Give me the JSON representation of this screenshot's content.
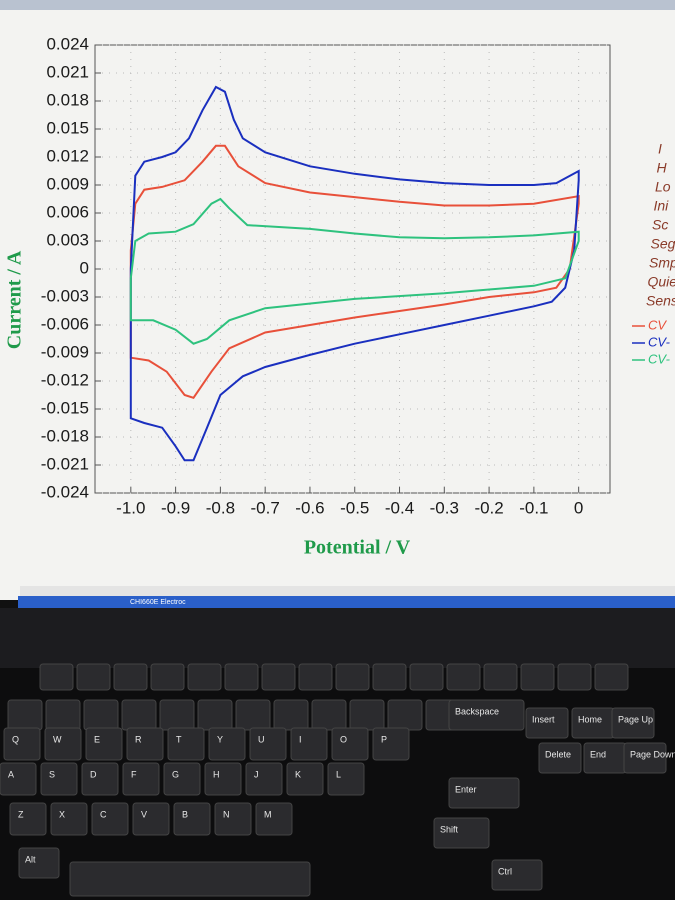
{
  "chart_data": {
    "type": "line",
    "xlabel": "Potential / V",
    "ylabel": "Current / A",
    "xlim": [
      -1.08,
      0.07
    ],
    "ylim": [
      -0.024,
      0.024
    ],
    "xticks": [
      {
        "value": -1,
        "label": "-1.0"
      },
      -0.9,
      -0.8,
      -0.7,
      -0.6,
      -0.5,
      -0.4,
      -0.3,
      -0.2,
      -0.1,
      0
    ],
    "yticks": [
      0.024,
      0.021,
      0.018,
      0.015,
      0.012,
      0.009,
      0.006,
      0.003,
      0,
      -0.003,
      -0.006,
      -0.009,
      -0.012,
      -0.015,
      -0.018,
      -0.021,
      -0.024
    ],
    "grid": true,
    "series": [
      {
        "name": "CV",
        "color": "#e8503a",
        "x": [
          -1.0,
          -0.99,
          -0.97,
          -0.93,
          -0.88,
          -0.84,
          -0.81,
          -0.79,
          -0.76,
          -0.7,
          -0.6,
          -0.5,
          -0.4,
          -0.3,
          -0.2,
          -0.1,
          0,
          0,
          -0.02,
          -0.05,
          -0.1,
          -0.2,
          -0.3,
          -0.4,
          -0.5,
          -0.6,
          -0.7,
          -0.78,
          -0.82,
          -0.86,
          -0.88,
          -0.92,
          -0.96,
          -1.0,
          -1.0
        ],
        "values": [
          0.002,
          0.007,
          0.0085,
          0.0088,
          0.0095,
          0.0115,
          0.0132,
          0.0132,
          0.011,
          0.0092,
          0.0082,
          0.0077,
          0.0072,
          0.0068,
          0.0068,
          0.007,
          0.0078,
          0.007,
          0.0,
          -0.002,
          -0.0025,
          -0.003,
          -0.0038,
          -0.0045,
          -0.0052,
          -0.006,
          -0.0068,
          -0.0085,
          -0.011,
          -0.0138,
          -0.0135,
          -0.011,
          -0.0098,
          -0.0095,
          0.002
        ]
      },
      {
        "name": "CV-",
        "color": "#1a2fbf",
        "x": [
          -1.0,
          -0.99,
          -0.97,
          -0.93,
          -0.9,
          -0.87,
          -0.84,
          -0.81,
          -0.79,
          -0.77,
          -0.75,
          -0.7,
          -0.6,
          -0.5,
          -0.4,
          -0.3,
          -0.2,
          -0.1,
          -0.05,
          0,
          0,
          -0.01,
          -0.03,
          -0.06,
          -0.1,
          -0.2,
          -0.3,
          -0.4,
          -0.5,
          -0.6,
          -0.7,
          -0.75,
          -0.8,
          -0.83,
          -0.86,
          -0.88,
          -0.9,
          -0.93,
          -0.97,
          -1.0,
          -1.0
        ],
        "values": [
          0.0,
          0.01,
          0.0115,
          0.012,
          0.0125,
          0.014,
          0.017,
          0.0195,
          0.019,
          0.016,
          0.014,
          0.0125,
          0.011,
          0.0102,
          0.0096,
          0.0092,
          0.009,
          0.009,
          0.0092,
          0.0105,
          0.0095,
          0.002,
          -0.002,
          -0.0035,
          -0.004,
          -0.005,
          -0.006,
          -0.007,
          -0.008,
          -0.0092,
          -0.0105,
          -0.0115,
          -0.0135,
          -0.017,
          -0.0205,
          -0.0205,
          -0.019,
          -0.017,
          -0.0165,
          -0.016,
          0.0
        ]
      },
      {
        "name": "CV-",
        "color": "#2ec27e",
        "x": [
          -1.0,
          -0.99,
          -0.96,
          -0.9,
          -0.86,
          -0.82,
          -0.8,
          -0.78,
          -0.74,
          -0.6,
          -0.5,
          -0.4,
          -0.3,
          -0.2,
          -0.1,
          0,
          0,
          -0.03,
          -0.1,
          -0.2,
          -0.3,
          -0.5,
          -0.7,
          -0.78,
          -0.83,
          -0.86,
          -0.9,
          -0.95,
          -1.0,
          -1.0
        ],
        "values": [
          -0.001,
          0.003,
          0.0038,
          0.004,
          0.0048,
          0.007,
          0.0075,
          0.0065,
          0.0047,
          0.0043,
          0.0038,
          0.0034,
          0.0033,
          0.0034,
          0.0036,
          0.004,
          0.003,
          -0.001,
          -0.0018,
          -0.0022,
          -0.0026,
          -0.0032,
          -0.0042,
          -0.0055,
          -0.0075,
          -0.008,
          -0.0065,
          -0.0055,
          -0.0055,
          -0.001
        ]
      }
    ]
  },
  "side_panel": [
    "I",
    "H",
    "Lo",
    "Ini",
    "Sc",
    "Seg",
    "Smp",
    "Quie",
    "Sens"
  ],
  "taskbar": "CHI660E Electroc",
  "keyboard": {
    "rows": [
      [
        "Q",
        "W",
        "E",
        "R",
        "T",
        "Y",
        "U",
        "I",
        "O",
        "P"
      ],
      [
        "A",
        "S",
        "D",
        "F",
        "G",
        "H",
        "J",
        "K",
        "L"
      ],
      [
        "Z",
        "X",
        "C",
        "V",
        "B",
        "N",
        "M"
      ]
    ],
    "keys": [
      "Backspace",
      "Insert",
      "Home",
      "Page Up",
      "Delete",
      "End",
      "Page Down",
      "Enter",
      "Shift",
      "Alt",
      "Ctrl"
    ]
  }
}
